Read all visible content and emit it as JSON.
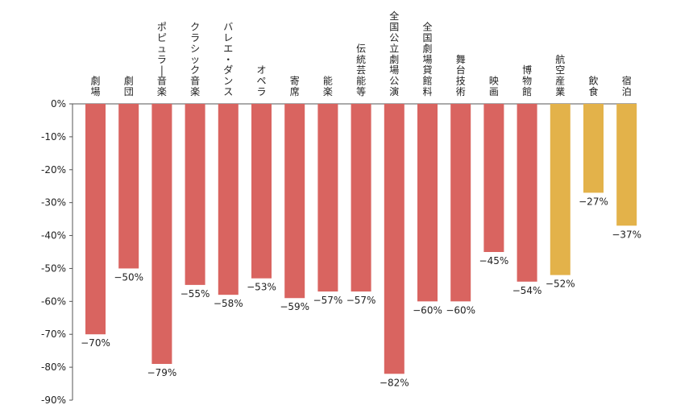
{
  "chart_data": {
    "type": "bar",
    "title": "",
    "xlabel": "",
    "ylabel": "",
    "ylim": [
      -90,
      0
    ],
    "y_ticks": [
      "0%",
      "-10%",
      "-20%",
      "-30%",
      "-40%",
      "-50%",
      "-60%",
      "-70%",
      "-80%",
      "-90%"
    ],
    "y_tick_values": [
      0,
      -10,
      -20,
      -30,
      -40,
      -50,
      -60,
      -70,
      -80,
      -90
    ],
    "grid": false,
    "categories": [
      "劇場",
      "劇団",
      "ポピュラー音楽",
      "クラシック音楽",
      "バレエ・ダンス",
      "オペラ",
      "寄席",
      "能楽",
      "伝統芸能等",
      "全国公立劇場公演",
      "全国劇場貸館料",
      "舞台技術",
      "映画",
      "博物館",
      "航空産業",
      "飲食",
      "宿泊"
    ],
    "values": [
      -70,
      -50,
      -79,
      -55,
      -58,
      -53,
      -59,
      -57,
      -57,
      -82,
      -60,
      -60,
      -45,
      -54,
      -52,
      -27,
      -37
    ],
    "value_labels": [
      "-70%",
      "-50%",
      "-79%",
      "-55%",
      "-58%",
      "-53%",
      "-59%",
      "-57%",
      "-57%",
      "-82%",
      "-60%",
      "-60%",
      "-45%",
      "-54%",
      "-52%",
      "-27%",
      "-37%"
    ],
    "colors": [
      "#d96460",
      "#d96460",
      "#d96460",
      "#d96460",
      "#d96460",
      "#d96460",
      "#d96460",
      "#d96460",
      "#d96460",
      "#d96460",
      "#d96460",
      "#d96460",
      "#d96460",
      "#d96460",
      "#e3b24a",
      "#e3b24a",
      "#e3b24a"
    ],
    "axis_color": "#555555"
  }
}
